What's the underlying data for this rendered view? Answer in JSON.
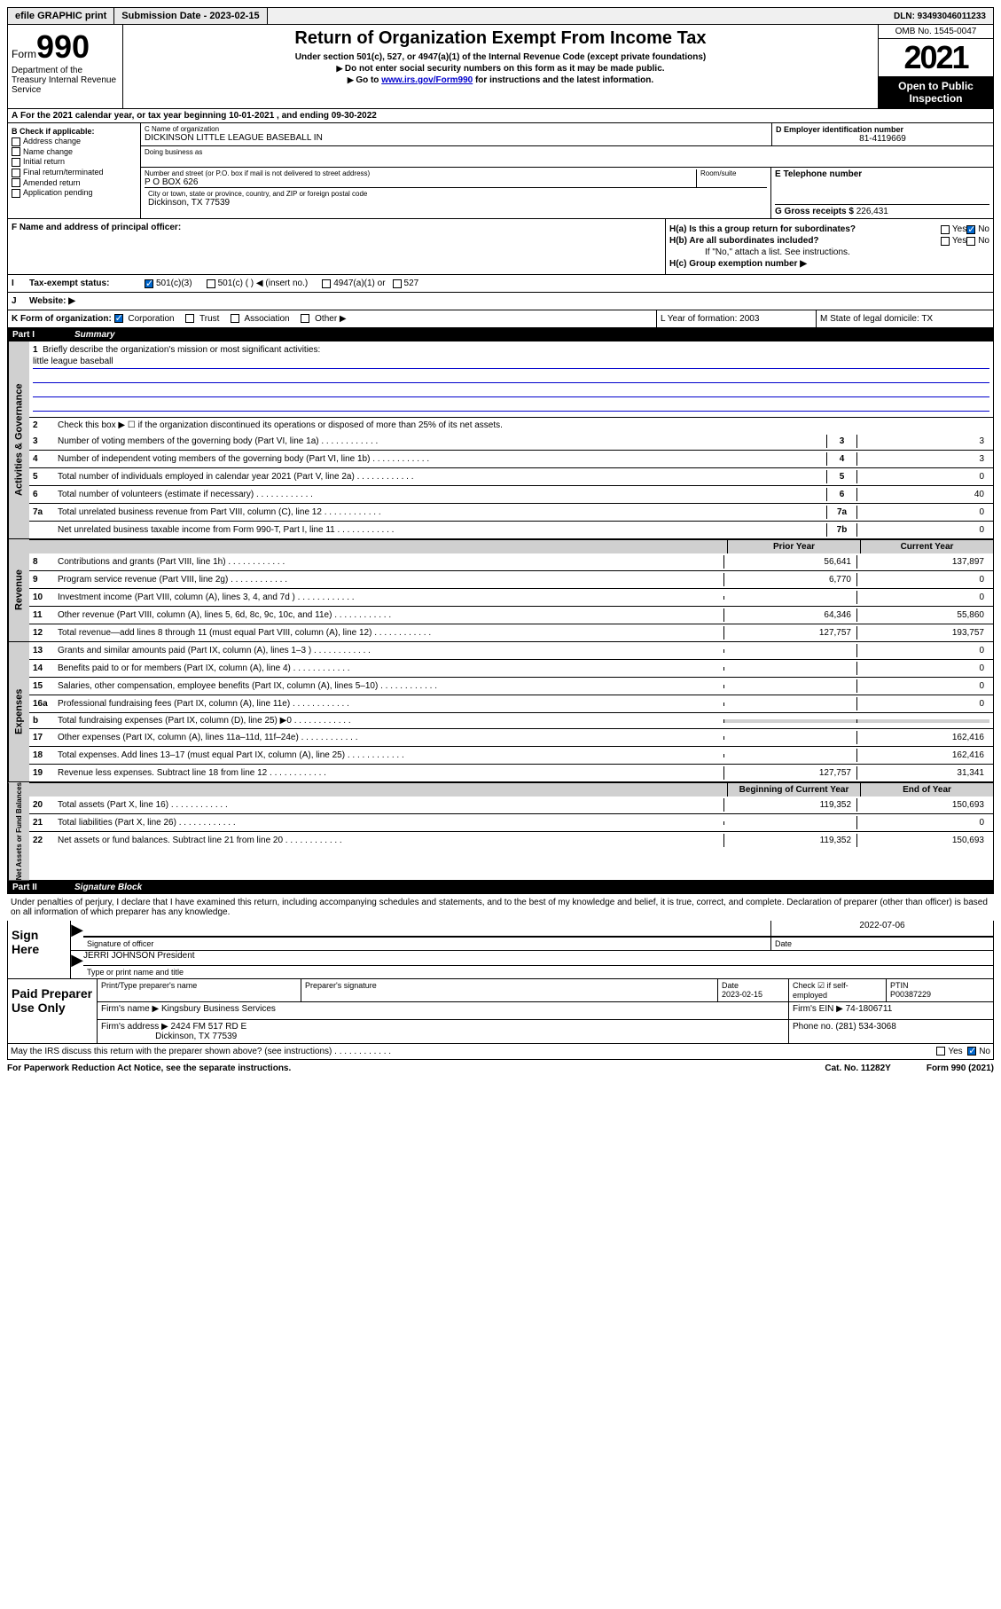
{
  "top": {
    "efile": "efile GRAPHIC print",
    "sub_label": "Submission Date - 2023-02-15",
    "dln": "DLN: 93493046011233"
  },
  "header": {
    "form_word": "Form",
    "form_num": "990",
    "title": "Return of Organization Exempt From Income Tax",
    "sub1": "Under section 501(c), 527, or 4947(a)(1) of the Internal Revenue Code (except private foundations)",
    "sub2": "Do not enter social security numbers on this form as it may be made public.",
    "sub3_pre": "Go to ",
    "sub3_link": "www.irs.gov/Form990",
    "sub3_post": " for instructions and the latest information.",
    "omb": "OMB No. 1545-0047",
    "year": "2021",
    "open": "Open to Public Inspection",
    "dept": "Department of the Treasury Internal Revenue Service"
  },
  "row_a": "For the 2021 calendar year, or tax year beginning 10-01-2021   , and ending 09-30-2022",
  "box_b": {
    "title": "B Check if applicable:",
    "items": [
      "Address change",
      "Name change",
      "Initial return",
      "Final return/terminated",
      "Amended return",
      "Application pending"
    ]
  },
  "box_c": {
    "name_label": "C Name of organization",
    "name": "DICKINSON LITTLE LEAGUE BASEBALL IN",
    "dba": "Doing business as",
    "addr_label": "Number and street (or P.O. box if mail is not delivered to street address)",
    "addr": "P O BOX 626",
    "room": "Room/suite",
    "city_label": "City or town, state or province, country, and ZIP or foreign postal code",
    "city": "Dickinson, TX  77539"
  },
  "box_d": {
    "label": "D Employer identification number",
    "val": "81-4119669"
  },
  "box_e": {
    "label": "E Telephone number",
    "val": ""
  },
  "box_g": {
    "label": "G Gross receipts $",
    "val": "226,431"
  },
  "box_f": "F  Name and address of principal officer:",
  "box_h": {
    "a": "H(a)  Is this a group return for subordinates?",
    "b": "H(b)  Are all subordinates included?",
    "b_note": "If \"No,\" attach a list. See instructions.",
    "c": "H(c)  Group exemption number ▶",
    "yes": "Yes",
    "no": "No"
  },
  "row_i": {
    "label": "Tax-exempt status:",
    "opts": [
      "501(c)(3)",
      "501(c) (  ) ◀ (insert no.)",
      "4947(a)(1) or",
      "527"
    ]
  },
  "row_j": {
    "label": "J",
    "text": "Website: ▶"
  },
  "row_k": {
    "label": "K Form of organization:",
    "opts": [
      "Corporation",
      "Trust",
      "Association",
      "Other ▶"
    ],
    "l": "L Year of formation: 2003",
    "m": "M State of legal domicile: TX"
  },
  "part1": {
    "num": "Part I",
    "title": "Summary"
  },
  "summary": {
    "q1": "Briefly describe the organization's mission or most significant activities:",
    "mission": "little league baseball",
    "q2": "Check this box ▶ ☐  if the organization discontinued its operations or disposed of more than 25% of its net assets.",
    "lines_ag": [
      {
        "n": "3",
        "t": "Number of voting members of the governing body (Part VI, line 1a)",
        "b": "3",
        "v": "3"
      },
      {
        "n": "4",
        "t": "Number of independent voting members of the governing body (Part VI, line 1b)",
        "b": "4",
        "v": "3"
      },
      {
        "n": "5",
        "t": "Total number of individuals employed in calendar year 2021 (Part V, line 2a)",
        "b": "5",
        "v": "0"
      },
      {
        "n": "6",
        "t": "Total number of volunteers (estimate if necessary)",
        "b": "6",
        "v": "40"
      },
      {
        "n": "7a",
        "t": "Total unrelated business revenue from Part VIII, column (C), line 12",
        "b": "7a",
        "v": "0"
      },
      {
        "n": "",
        "t": "Net unrelated business taxable income from Form 990-T, Part I, line 11",
        "b": "7b",
        "v": "0"
      }
    ],
    "col_hdr_prior": "Prior Year",
    "col_hdr_curr": "Current Year",
    "rev": [
      {
        "n": "8",
        "t": "Contributions and grants (Part VIII, line 1h)",
        "p": "56,641",
        "c": "137,897"
      },
      {
        "n": "9",
        "t": "Program service revenue (Part VIII, line 2g)",
        "p": "6,770",
        "c": "0"
      },
      {
        "n": "10",
        "t": "Investment income (Part VIII, column (A), lines 3, 4, and 7d )",
        "p": "",
        "c": "0"
      },
      {
        "n": "11",
        "t": "Other revenue (Part VIII, column (A), lines 5, 6d, 8c, 9c, 10c, and 11e)",
        "p": "64,346",
        "c": "55,860"
      },
      {
        "n": "12",
        "t": "Total revenue—add lines 8 through 11 (must equal Part VIII, column (A), line 12)",
        "p": "127,757",
        "c": "193,757"
      }
    ],
    "exp": [
      {
        "n": "13",
        "t": "Grants and similar amounts paid (Part IX, column (A), lines 1–3 )",
        "p": "",
        "c": "0"
      },
      {
        "n": "14",
        "t": "Benefits paid to or for members (Part IX, column (A), line 4)",
        "p": "",
        "c": "0"
      },
      {
        "n": "15",
        "t": "Salaries, other compensation, employee benefits (Part IX, column (A), lines 5–10)",
        "p": "",
        "c": "0"
      },
      {
        "n": "16a",
        "t": "Professional fundraising fees (Part IX, column (A), line 11e)",
        "p": "",
        "c": "0"
      },
      {
        "n": "b",
        "t": "Total fundraising expenses (Part IX, column (D), line 25) ▶0",
        "p": "—",
        "c": "—"
      },
      {
        "n": "17",
        "t": "Other expenses (Part IX, column (A), lines 11a–11d, 11f–24e)",
        "p": "",
        "c": "162,416"
      },
      {
        "n": "18",
        "t": "Total expenses. Add lines 13–17 (must equal Part IX, column (A), line 25)",
        "p": "",
        "c": "162,416"
      },
      {
        "n": "19",
        "t": "Revenue less expenses. Subtract line 18 from line 12",
        "p": "127,757",
        "c": "31,341"
      }
    ],
    "bal_hdr_b": "Beginning of Current Year",
    "bal_hdr_e": "End of Year",
    "bal": [
      {
        "n": "20",
        "t": "Total assets (Part X, line 16)",
        "p": "119,352",
        "c": "150,693"
      },
      {
        "n": "21",
        "t": "Total liabilities (Part X, line 26)",
        "p": "",
        "c": "0"
      },
      {
        "n": "22",
        "t": "Net assets or fund balances. Subtract line 21 from line 20",
        "p": "119,352",
        "c": "150,693"
      }
    ],
    "vert_ag": "Activities & Governance",
    "vert_rev": "Revenue",
    "vert_exp": "Expenses",
    "vert_bal": "Net Assets or Fund Balances"
  },
  "part2": {
    "num": "Part II",
    "title": "Signature Block"
  },
  "sig": {
    "decl": "Under penalties of perjury, I declare that I have examined this return, including accompanying schedules and statements, and to the best of my knowledge and belief, it is true, correct, and complete. Declaration of preparer (other than officer) is based on all information of which preparer has any knowledge.",
    "sign_here": "Sign Here",
    "sig_off": "Signature of officer",
    "date": "Date",
    "date_val": "2022-07-06",
    "name": "JERRI JOHNSON President",
    "name_label": "Type or print name and title"
  },
  "prep": {
    "title": "Paid Preparer Use Only",
    "hdr": [
      "Print/Type preparer's name",
      "Preparer's signature",
      "Date",
      "",
      "PTIN"
    ],
    "date": "2023-02-15",
    "check_label": "Check ☑ if self-employed",
    "ptin": "P00387229",
    "firm_name_l": "Firm's name    ▶",
    "firm_name": "Kingsbury Business Services",
    "firm_ein_l": "Firm's EIN ▶",
    "firm_ein": "74-1806711",
    "firm_addr_l": "Firm's address ▶",
    "firm_addr": "2424 FM 517 RD E",
    "firm_city": "Dickinson, TX  77539",
    "phone_l": "Phone no.",
    "phone": "(281) 534-3068"
  },
  "may_irs": "May the IRS discuss this return with the preparer shown above? (see instructions)",
  "footer": {
    "pra": "For Paperwork Reduction Act Notice, see the separate instructions.",
    "cat": "Cat. No. 11282Y",
    "form": "Form 990 (2021)"
  }
}
